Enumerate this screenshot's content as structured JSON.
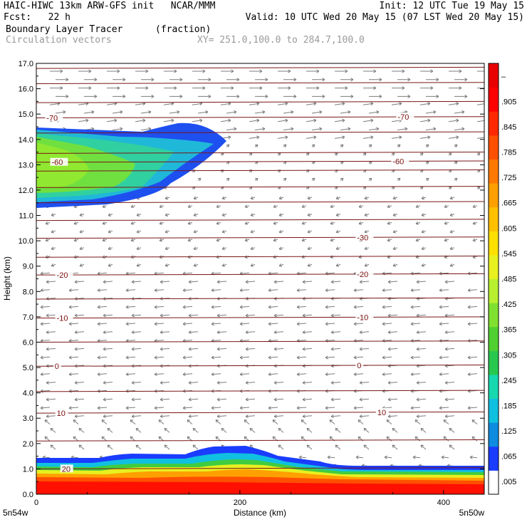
{
  "header": {
    "line1_left": "HAIC-HIWC 13km ARW-GFS init   NCAR/MMM",
    "line1_right": "Init: 12 UTC Tue 19 May 15",
    "line2_left": "Fcst:   22 h",
    "line2_right": "Valid: 10 UTC Wed 20 May 15 (07 LST Wed 20 May 15)",
    "field_name": "Boundary Layer Tracer",
    "field_units": "(fraction)",
    "vector_name": "Circulation vectors",
    "xsec_coords": "XY= 251.0,100.0 to 284.7,100.0"
  },
  "chart_data": {
    "type": "heatmap",
    "title": "Boundary Layer Tracer",
    "xlabel": "Distance (km)",
    "ylabel": "Height (km)",
    "xlim": [
      0,
      440
    ],
    "ylim": [
      0,
      17
    ],
    "x_ticks": [
      0,
      200,
      400
    ],
    "y_ticks": [
      "0.0",
      "1.0",
      "2.0",
      "3.0",
      "4.0",
      "5.0",
      "6.0",
      "7.0",
      "8.0",
      "9.0",
      "10.0",
      "11.0",
      "12.0",
      "13.0",
      "14.0",
      "15.0",
      "16.0",
      "17.0"
    ],
    "x_end_labels": {
      "left": "5n54w",
      "right": "5n50w"
    },
    "colorbar": {
      "labels": [
        ".005",
        ".065",
        ".125",
        ".185",
        ".245",
        ".305",
        ".365",
        ".425",
        ".485",
        ".545",
        ".605",
        ".665",
        ".725",
        ".785",
        ".845",
        ".905",
        "–"
      ],
      "colors": [
        "#ffffff",
        "#1a3cff",
        "#0e8ce0",
        "#10c0e0",
        "#18d8b0",
        "#28c850",
        "#50d030",
        "#80e030",
        "#b8f030",
        "#e8f020",
        "#ffe000",
        "#ffc000",
        "#ffa000",
        "#ff7800",
        "#ff5000",
        "#ff2800",
        "#ff0000",
        "#e80000"
      ]
    },
    "temperature_contours": [
      {
        "value": 20,
        "label": "20",
        "height": 1.0
      },
      {
        "value": 10,
        "label": "10",
        "height": 3.2
      },
      {
        "value": 0,
        "label": "0",
        "height": 5.05
      },
      {
        "value": -10,
        "label": "-10",
        "height": 6.95
      },
      {
        "value": -20,
        "label": "-20",
        "height": 8.65
      },
      {
        "value": -30,
        "label": "-30",
        "height": 10.1
      },
      {
        "value": -60,
        "label": "-60",
        "height": 13.1
      },
      {
        "value": -70,
        "label": "-70",
        "height": 14.85
      }
    ],
    "contour_label_positions": {
      "20": [
        25,
        550
      ],
      "10": [
        20,
        335
      ],
      "0": [
        18,
        315
      ],
      "-10": [
        20,
        315
      ],
      "-20": [
        20,
        315
      ],
      "-30": [
        315
      ],
      "-60": [
        15,
        350
      ],
      "-70": [
        10,
        355
      ]
    }
  }
}
